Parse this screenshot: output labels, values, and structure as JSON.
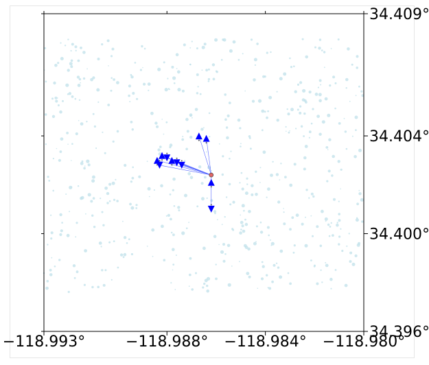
{
  "chart_data": {
    "type": "map",
    "description_free": true,
    "x_axis": {
      "range": [
        -118.993,
        -118.98
      ],
      "ticks": [
        {
          "value": -118.993,
          "label": "−118.993°"
        },
        {
          "value": -118.988,
          "label": "−118.988°"
        },
        {
          "value": -118.984,
          "label": "−118.984°"
        },
        {
          "value": -118.98,
          "label": "−118.980°"
        }
      ]
    },
    "y_axis": {
      "range": [
        34.396,
        34.409
      ],
      "ticks": [
        {
          "value": 34.409,
          "label": "34.409°"
        },
        {
          "value": 34.404,
          "label": "34.404°"
        },
        {
          "value": 34.4,
          "label": "34.400°"
        },
        {
          "value": 34.396,
          "label": "34.396°"
        }
      ]
    },
    "colors": {
      "background_points": "#bfe0ea",
      "arrows": "#0000ff",
      "edges": "#5566ff",
      "center_point": "#e06666",
      "axis": "#000000"
    },
    "center": {
      "lon": -118.9862,
      "lat": 34.4024
    },
    "arrow_points": [
      {
        "lon": -118.9867,
        "lat": 34.404,
        "dir": "up"
      },
      {
        "lon": -118.9864,
        "lat": 34.4039,
        "dir": "up"
      },
      {
        "lon": -118.9882,
        "lat": 34.4032,
        "dir": "up"
      },
      {
        "lon": -118.9878,
        "lat": 34.403,
        "dir": "up"
      },
      {
        "lon": -118.9884,
        "lat": 34.403,
        "dir": "up"
      },
      {
        "lon": -118.988,
        "lat": 34.4031,
        "dir": "down"
      },
      {
        "lon": -118.9876,
        "lat": 34.4029,
        "dir": "down"
      },
      {
        "lon": -118.9874,
        "lat": 34.4028,
        "dir": "down"
      },
      {
        "lon": -118.9883,
        "lat": 34.4028,
        "dir": "down"
      },
      {
        "lon": -118.9862,
        "lat": 34.4021,
        "dir": "up"
      },
      {
        "lon": -118.9862,
        "lat": 34.401,
        "dir": "down"
      }
    ],
    "grid": false,
    "legend": "none"
  }
}
